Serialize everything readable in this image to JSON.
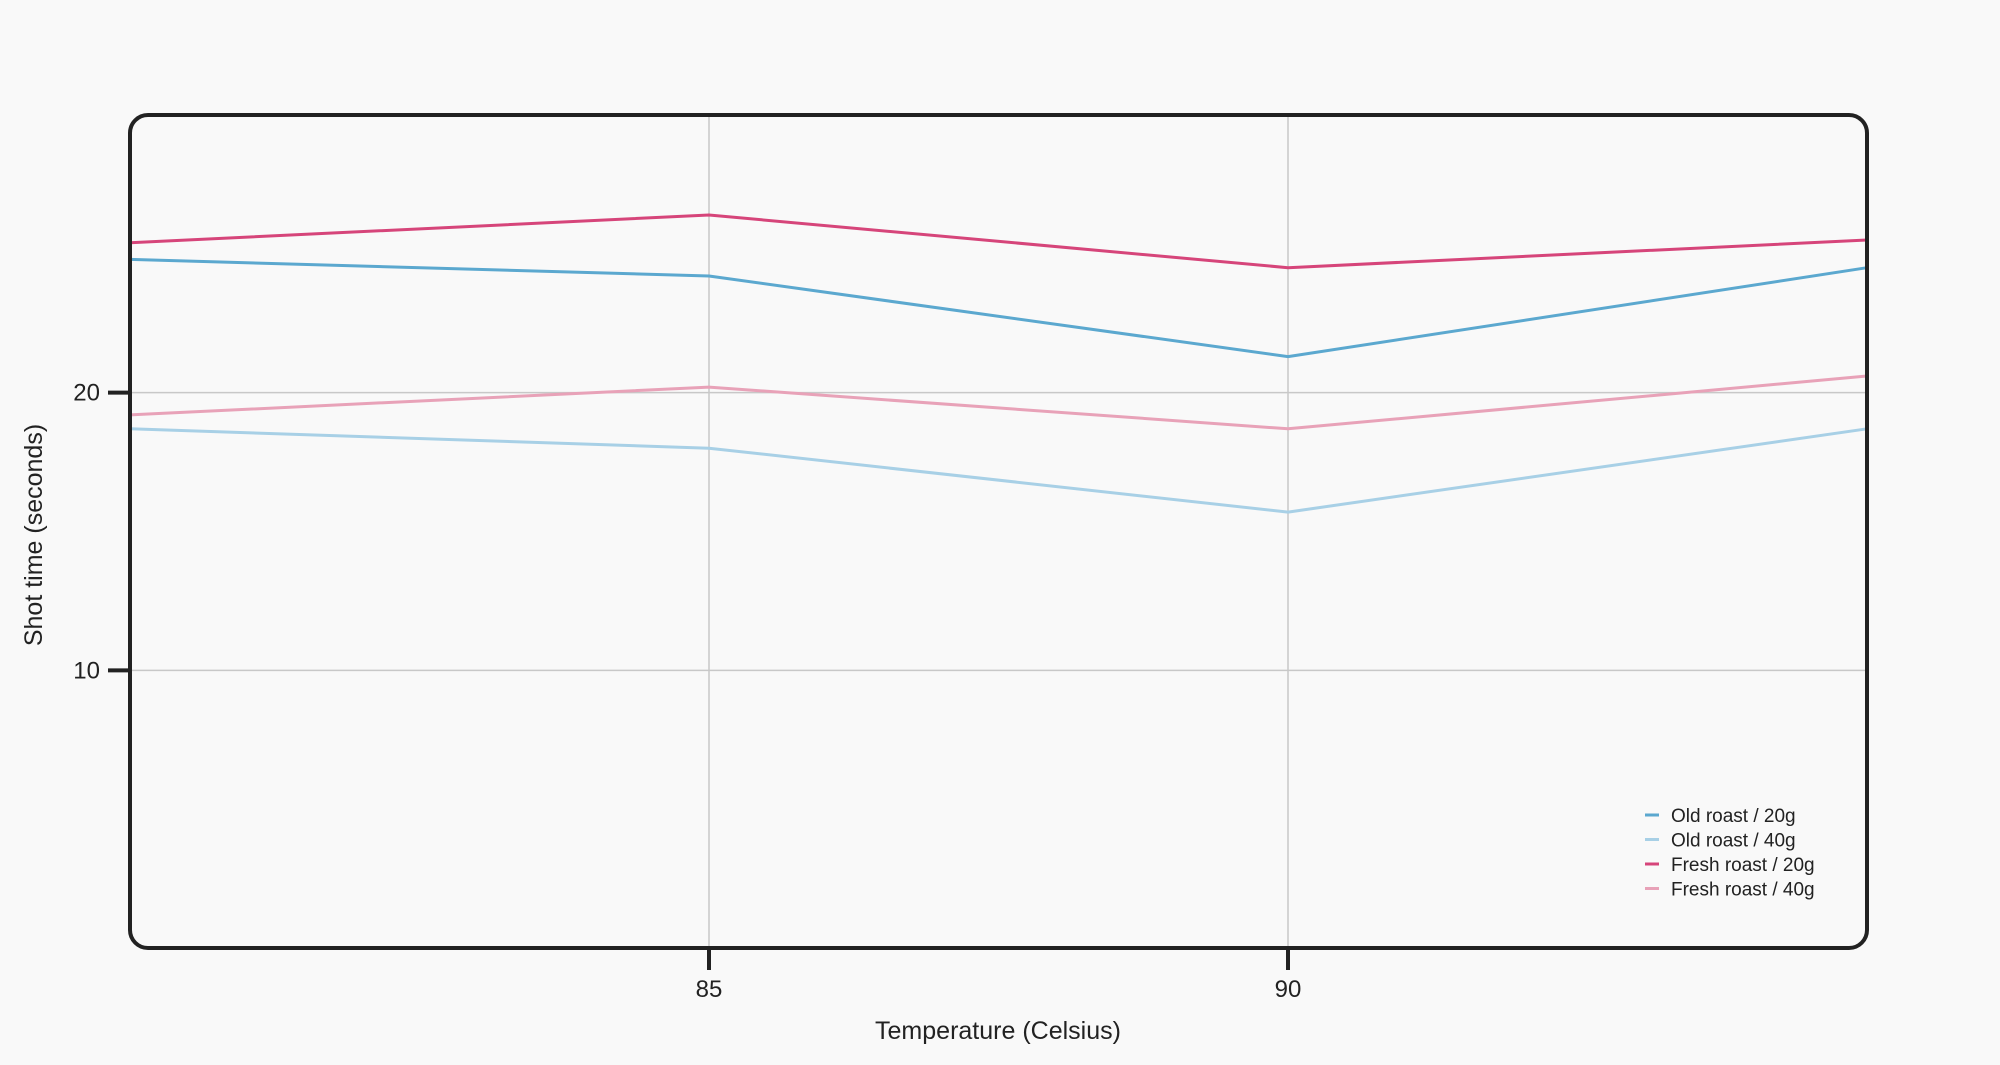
{
  "chart_data": {
    "type": "line",
    "title": "",
    "xlabel": "Temperature (Celsius)",
    "ylabel": "Shot time (seconds)",
    "x": [
      80,
      85,
      90,
      95
    ],
    "xlim": [
      80,
      95
    ],
    "ylim": [
      0,
      30
    ],
    "xticks": [
      85,
      90
    ],
    "yticks": [
      10,
      20
    ],
    "xtick_labels": [
      "85",
      "90"
    ],
    "ytick_labels": [
      "10",
      "20"
    ],
    "grid": true,
    "legend_position": "bottom-right",
    "series": [
      {
        "name": "Old roast / 20g",
        "color": "#5ba8cf",
        "values": [
          24.8,
          24.2,
          21.3,
          24.5
        ]
      },
      {
        "name": "Old roast / 40g",
        "color": "#a8d0e6",
        "values": [
          18.7,
          18.0,
          15.7,
          18.7
        ]
      },
      {
        "name": "Fresh roast / 20g",
        "color": "#d6457a",
        "values": [
          25.4,
          26.4,
          24.5,
          25.5
        ]
      },
      {
        "name": "Fresh roast / 40g",
        "color": "#e8a2b8",
        "values": [
          19.2,
          20.2,
          18.7,
          20.6
        ]
      }
    ]
  }
}
